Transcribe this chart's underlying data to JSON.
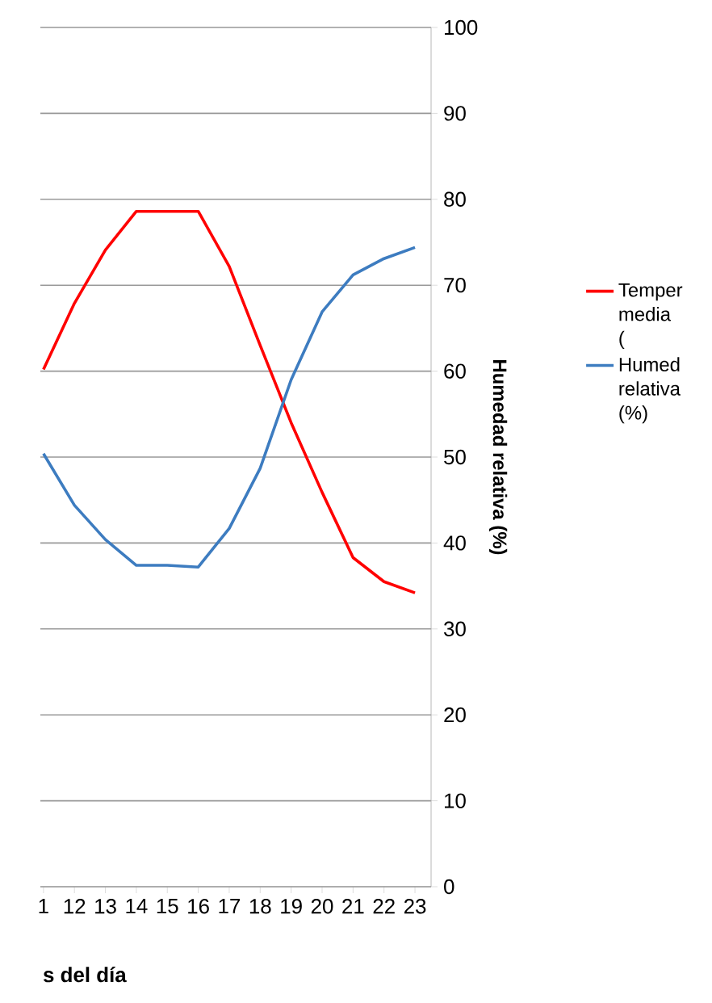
{
  "chart_data": {
    "type": "line",
    "xlabel": "s del día",
    "y2label": "Humedad relativa (%)",
    "categories": [
      "1",
      "12",
      "13",
      "14",
      "15",
      "16",
      "17",
      "18",
      "19",
      "20",
      "21",
      "22",
      "23"
    ],
    "series": [
      {
        "name": "Temper media (",
        "color": "#ff0000",
        "axis": "y2",
        "values": [
          60.2,
          67.9,
          74.1,
          78.6,
          78.6,
          78.6,
          72.2,
          63.0,
          54.0,
          45.9,
          38.3,
          35.5,
          34.2
        ]
      },
      {
        "name": "Humed relativa (%)",
        "color": "#3d7cc0",
        "axis": "y2",
        "values": [
          50.4,
          44.4,
          40.4,
          37.4,
          37.4,
          37.2,
          41.7,
          48.7,
          59.0,
          66.9,
          71.2,
          73.1,
          74.4
        ]
      }
    ],
    "y2lim": [
      0,
      100
    ],
    "y2ticks": [
      0,
      10,
      20,
      30,
      40,
      50,
      60,
      70,
      80,
      90,
      100
    ],
    "grid": "y",
    "legend": "right",
    "marker": "none",
    "line_style": "solid"
  }
}
